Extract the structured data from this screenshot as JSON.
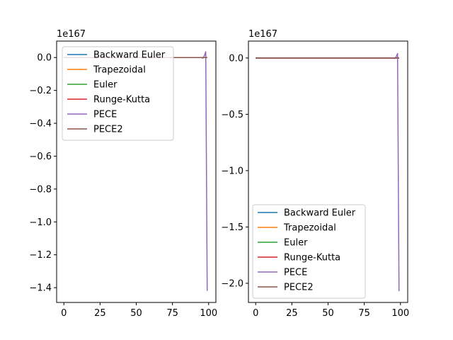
{
  "chart_data": [
    {
      "type": "line",
      "offset_text": "1e167",
      "xlim": [
        -5,
        105
      ],
      "ylim": [
        -1.49,
        0.1
      ],
      "xticks": [
        0,
        25,
        50,
        75,
        100
      ],
      "xtick_labels": [
        "0",
        "25",
        "50",
        "75",
        "100"
      ],
      "yticks": [
        0.0,
        -0.2,
        -0.4,
        -0.6,
        -0.8,
        -1.0,
        -1.2,
        -1.4
      ],
      "ytick_labels": [
        "0.0",
        "−0.2",
        "−0.4",
        "−0.6",
        "−0.8",
        "−1.0",
        "−1.2",
        "−1.4"
      ],
      "legend_position": "upper-left",
      "series": [
        {
          "name": "Backward Euler",
          "color": "#1f77b4",
          "x": [
            0,
            95,
            97,
            98,
            99
          ],
          "y": [
            0,
            0,
            0,
            0,
            0
          ]
        },
        {
          "name": "Trapezoidal",
          "color": "#ff7f0e",
          "x": [
            0,
            95,
            97,
            98,
            99
          ],
          "y": [
            0,
            0,
            0,
            0,
            0
          ]
        },
        {
          "name": "Euler",
          "color": "#2ca02c",
          "x": [
            0,
            95,
            97,
            98,
            99
          ],
          "y": [
            0,
            0,
            0,
            0,
            0
          ]
        },
        {
          "name": "Runge-Kutta",
          "color": "#d62728",
          "x": [
            0,
            95,
            97,
            98,
            99
          ],
          "y": [
            0,
            0,
            0,
            0,
            0
          ]
        },
        {
          "name": "PECE",
          "color": "#9467bd",
          "x": [
            0,
            95,
            96,
            97,
            98,
            99
          ],
          "y": [
            0,
            0,
            -0.004,
            0.01,
            0.035,
            -1.42
          ]
        },
        {
          "name": "PECE2",
          "color": "#8c564b",
          "x": [
            0,
            95,
            97,
            98,
            99
          ],
          "y": [
            0,
            0,
            0,
            0,
            0
          ]
        }
      ]
    },
    {
      "type": "line",
      "offset_text": "1e167",
      "xlim": [
        -5,
        105
      ],
      "ylim": [
        -2.17,
        0.15
      ],
      "xticks": [
        0,
        25,
        50,
        75,
        100
      ],
      "xtick_labels": [
        "0",
        "25",
        "50",
        "75",
        "100"
      ],
      "yticks": [
        0.0,
        -0.5,
        -1.0,
        -1.5,
        -2.0
      ],
      "ytick_labels": [
        "0.0",
        "−0.5",
        "−1.0",
        "−1.5",
        "−2.0"
      ],
      "legend_position": "lower-left",
      "series": [
        {
          "name": "Backward Euler",
          "color": "#1f77b4",
          "x": [
            0,
            95,
            97,
            98,
            99
          ],
          "y": [
            0,
            0,
            0,
            0,
            0
          ]
        },
        {
          "name": "Trapezoidal",
          "color": "#ff7f0e",
          "x": [
            0,
            95,
            97,
            98,
            99
          ],
          "y": [
            0,
            0,
            0,
            0,
            0
          ]
        },
        {
          "name": "Euler",
          "color": "#2ca02c",
          "x": [
            0,
            95,
            97,
            98,
            99
          ],
          "y": [
            0,
            0,
            0,
            0,
            0
          ]
        },
        {
          "name": "Runge-Kutta",
          "color": "#d62728",
          "x": [
            0,
            95,
            97,
            98,
            99
          ],
          "y": [
            0,
            0,
            0,
            0,
            0
          ]
        },
        {
          "name": "PECE",
          "color": "#9467bd",
          "x": [
            0,
            95,
            96,
            97,
            98,
            99
          ],
          "y": [
            0,
            0,
            -0.005,
            0.01,
            0.04,
            -2.07
          ]
        },
        {
          "name": "PECE2",
          "color": "#8c564b",
          "x": [
            0,
            95,
            97,
            98,
            99
          ],
          "y": [
            0,
            0,
            0,
            0,
            0
          ]
        }
      ]
    }
  ]
}
